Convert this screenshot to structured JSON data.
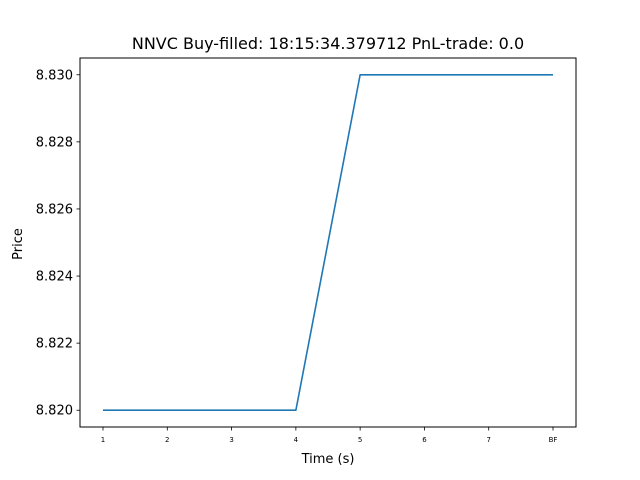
{
  "chart_data": {
    "type": "line",
    "title": "NNVC  Buy-filled:  18:15:34.379712  PnL-trade:  0.0",
    "xlabel": "Time (s)",
    "ylabel": "Price",
    "categories": [
      "1",
      "2",
      "3",
      "4",
      "5",
      "6",
      "7",
      "BF"
    ],
    "series": [
      {
        "values": [
          8.82,
          8.82,
          8.82,
          8.82,
          8.83,
          8.83,
          8.83,
          8.83
        ],
        "color": "#1f77b4"
      }
    ],
    "ylim": [
      8.8195,
      8.8305
    ],
    "yticks": [
      8.82,
      8.822,
      8.824,
      8.826,
      8.828,
      8.83
    ],
    "ytick_labels": [
      "8.820",
      "8.822",
      "8.824",
      "8.826",
      "8.828",
      "8.830"
    ],
    "grid": false,
    "legend": false
  }
}
